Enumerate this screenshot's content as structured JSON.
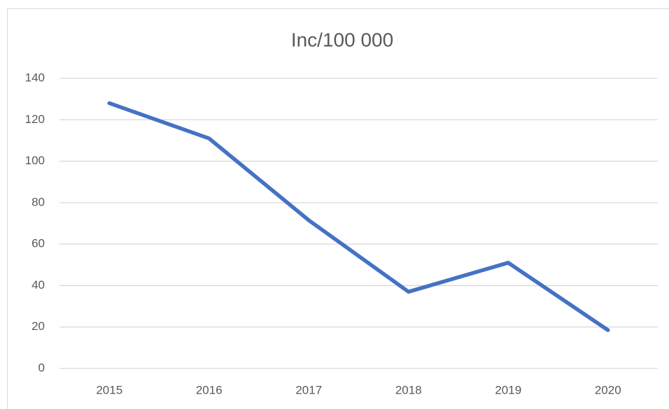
{
  "chart_data": {
    "type": "line",
    "title": "Inc/100 000",
    "categories": [
      "2015",
      "2016",
      "2017",
      "2018",
      "2019",
      "2020"
    ],
    "values": [
      128,
      111,
      71.5,
      37,
      51,
      18.5
    ],
    "color": "#4472c4",
    "ylim": [
      0,
      140
    ],
    "yticks": [
      0,
      20,
      40,
      60,
      80,
      100,
      120,
      140
    ],
    "grid": true
  }
}
